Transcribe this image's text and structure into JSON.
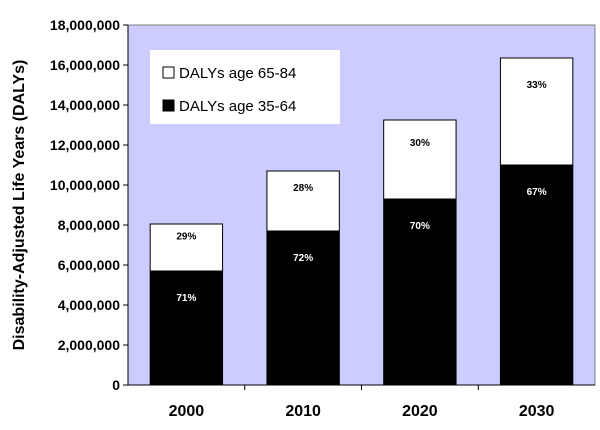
{
  "chart_data": {
    "type": "bar",
    "stacked": true,
    "ylabel": "Disability-Adjusted Life Years (DALYs)",
    "xlabel": "",
    "ylim": [
      0,
      18000000
    ],
    "ytick_step": 2000000,
    "ytick_labels": [
      "0",
      "2,000,000",
      "4,000,000",
      "6,000,000",
      "8,000,000",
      "10,000,000",
      "12,000,000",
      "14,000,000",
      "16,000,000",
      "18,000,000"
    ],
    "grid": false,
    "legend_position": "top-left",
    "categories": [
      "2000",
      "2010",
      "2020",
      "2030"
    ],
    "series": [
      {
        "name": "DALYs age 35-64",
        "color": "#000000",
        "label_color": "#ffffff",
        "values": [
          5700000,
          7700000,
          9300000,
          11000000
        ],
        "labels": [
          "71%",
          "72%",
          "70%",
          "67%"
        ]
      },
      {
        "name": "DALYs age 65-84",
        "color": "#ffffff",
        "label_color": "#000000",
        "values": [
          2350000,
          3000000,
          3950000,
          5350000
        ],
        "labels": [
          "29%",
          "28%",
          "30%",
          "33%"
        ]
      }
    ],
    "legend_order": [
      1,
      0
    ],
    "plot_background": "#ccccff"
  }
}
